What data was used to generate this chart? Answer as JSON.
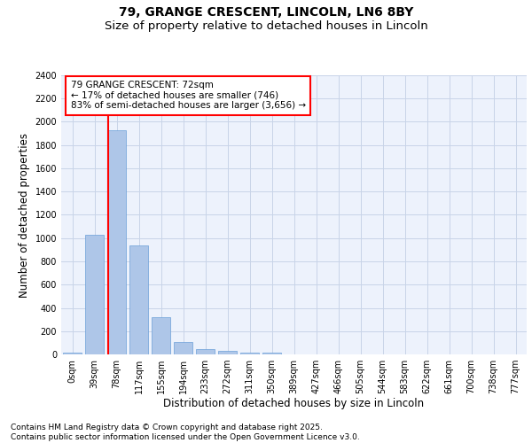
{
  "title_line1": "79, GRANGE CRESCENT, LINCOLN, LN6 8BY",
  "title_line2": "Size of property relative to detached houses in Lincoln",
  "xlabel": "Distribution of detached houses by size in Lincoln",
  "ylabel": "Number of detached properties",
  "categories": [
    "0sqm",
    "39sqm",
    "78sqm",
    "117sqm",
    "155sqm",
    "194sqm",
    "233sqm",
    "272sqm",
    "311sqm",
    "350sqm",
    "389sqm",
    "427sqm",
    "466sqm",
    "505sqm",
    "544sqm",
    "583sqm",
    "622sqm",
    "661sqm",
    "700sqm",
    "738sqm",
    "777sqm"
  ],
  "values": [
    15,
    1030,
    1930,
    940,
    320,
    110,
    45,
    28,
    18,
    12,
    0,
    0,
    0,
    0,
    0,
    0,
    0,
    0,
    0,
    0,
    0
  ],
  "bar_color": "#aec6e8",
  "bar_edge_color": "#6a9fd8",
  "vline_color": "red",
  "vline_x_idx": 1.6,
  "annotation_text": "79 GRANGE CRESCENT: 72sqm\n← 17% of detached houses are smaller (746)\n83% of semi-detached houses are larger (3,656) →",
  "annotation_box_facecolor": "white",
  "annotation_box_edgecolor": "red",
  "ylim": [
    0,
    2400
  ],
  "yticks": [
    0,
    200,
    400,
    600,
    800,
    1000,
    1200,
    1400,
    1600,
    1800,
    2000,
    2200,
    2400
  ],
  "grid_color": "#c8d4e8",
  "background_color": "#edf2fc",
  "footer_text": "Contains HM Land Registry data © Crown copyright and database right 2025.\nContains public sector information licensed under the Open Government Licence v3.0.",
  "title_fontsize": 10,
  "subtitle_fontsize": 9.5,
  "tick_fontsize": 7,
  "ylabel_fontsize": 8.5,
  "xlabel_fontsize": 8.5,
  "annotation_fontsize": 7.5,
  "footer_fontsize": 6.5
}
